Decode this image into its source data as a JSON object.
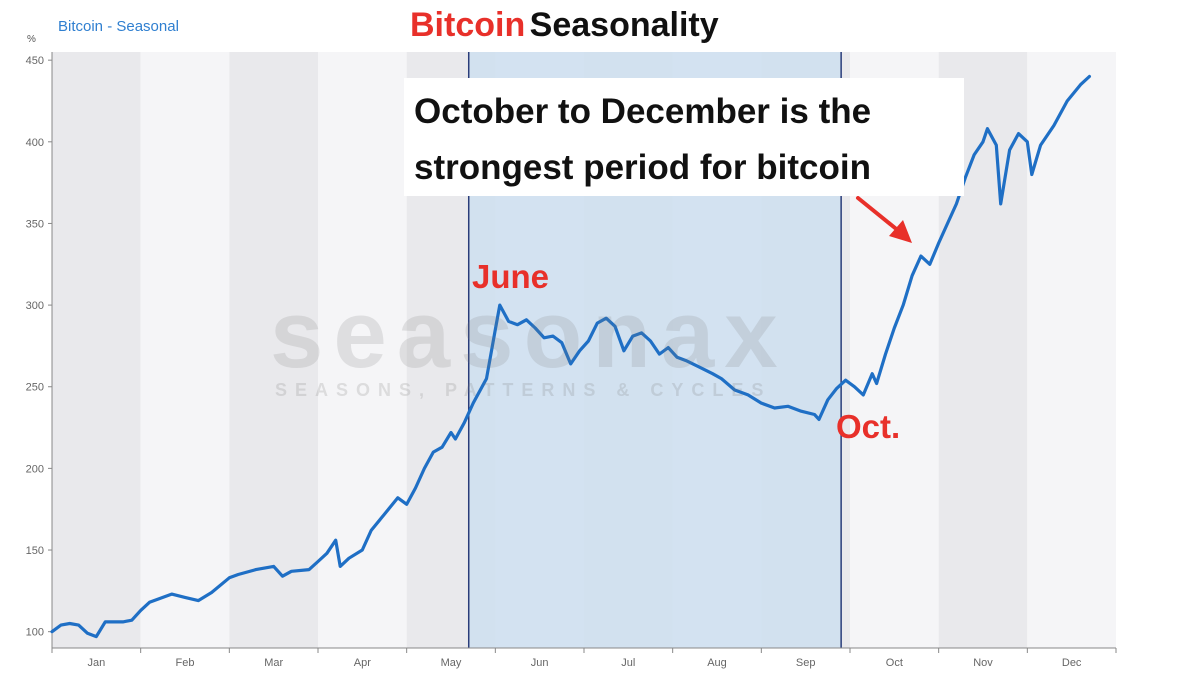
{
  "title": {
    "part1": "Bitcoin",
    "part2": "Seasonality",
    "color1": "#e8302a",
    "color2": "#111111"
  },
  "legend": {
    "series_name": "Bitcoin - Seasonal",
    "unit": "%"
  },
  "callout": {
    "line1": "October to December is the",
    "line2": "strongest period for bitcoin"
  },
  "annotations": {
    "june": "June",
    "oct": "Oct."
  },
  "watermark": {
    "brand": "seasonax",
    "tagline": "SEASONS, PATTERNS & CYCLES"
  },
  "colors": {
    "line": "#1f6fc5",
    "highlight": "#cfe0f0",
    "stripe_dark": "#e9e9ec",
    "stripe_light": "#f5f5f7",
    "annotation": "#e8302a"
  },
  "chart_data": {
    "type": "line",
    "ylabel": "%",
    "ylim": [
      90,
      455
    ],
    "yticks": [
      100,
      150,
      200,
      250,
      300,
      350,
      400,
      450
    ],
    "x_months": [
      "Jan",
      "Feb",
      "Mar",
      "Apr",
      "May",
      "Jun",
      "Jul",
      "Aug",
      "Sep",
      "Oct",
      "Nov",
      "Dec"
    ],
    "highlight_period": {
      "start_month_index": 4.7,
      "end_month_index": 8.9
    },
    "series": [
      {
        "name": "Bitcoin - Seasonal",
        "points": [
          [
            0.0,
            100
          ],
          [
            0.1,
            104
          ],
          [
            0.2,
            105
          ],
          [
            0.3,
            104
          ],
          [
            0.4,
            99
          ],
          [
            0.5,
            97
          ],
          [
            0.6,
            106
          ],
          [
            0.8,
            106
          ],
          [
            0.9,
            107
          ],
          [
            1.0,
            113
          ],
          [
            1.1,
            118
          ],
          [
            1.2,
            120
          ],
          [
            1.35,
            123
          ],
          [
            1.5,
            121
          ],
          [
            1.65,
            119
          ],
          [
            1.8,
            124
          ],
          [
            2.0,
            133
          ],
          [
            2.1,
            135
          ],
          [
            2.3,
            138
          ],
          [
            2.5,
            140
          ],
          [
            2.6,
            134
          ],
          [
            2.7,
            137
          ],
          [
            2.9,
            138
          ],
          [
            3.0,
            143
          ],
          [
            3.1,
            148
          ],
          [
            3.2,
            156
          ],
          [
            3.25,
            140
          ],
          [
            3.35,
            145
          ],
          [
            3.5,
            150
          ],
          [
            3.6,
            162
          ],
          [
            3.75,
            172
          ],
          [
            3.9,
            182
          ],
          [
            4.0,
            178
          ],
          [
            4.1,
            188
          ],
          [
            4.2,
            200
          ],
          [
            4.3,
            210
          ],
          [
            4.4,
            213
          ],
          [
            4.5,
            222
          ],
          [
            4.55,
            218
          ],
          [
            4.65,
            228
          ],
          [
            4.75,
            240
          ],
          [
            4.9,
            255
          ],
          [
            5.0,
            285
          ],
          [
            5.05,
            300
          ],
          [
            5.15,
            290
          ],
          [
            5.25,
            288
          ],
          [
            5.35,
            291
          ],
          [
            5.45,
            286
          ],
          [
            5.55,
            280
          ],
          [
            5.65,
            281
          ],
          [
            5.75,
            277
          ],
          [
            5.85,
            264
          ],
          [
            5.95,
            272
          ],
          [
            6.05,
            278
          ],
          [
            6.15,
            289
          ],
          [
            6.25,
            292
          ],
          [
            6.35,
            287
          ],
          [
            6.45,
            272
          ],
          [
            6.55,
            281
          ],
          [
            6.65,
            283
          ],
          [
            6.75,
            278
          ],
          [
            6.85,
            270
          ],
          [
            6.95,
            274
          ],
          [
            7.05,
            268
          ],
          [
            7.15,
            266
          ],
          [
            7.3,
            262
          ],
          [
            7.45,
            258
          ],
          [
            7.55,
            255
          ],
          [
            7.7,
            248
          ],
          [
            7.85,
            245
          ],
          [
            8.0,
            240
          ],
          [
            8.15,
            237
          ],
          [
            8.3,
            238
          ],
          [
            8.45,
            235
          ],
          [
            8.6,
            233
          ],
          [
            8.65,
            230
          ],
          [
            8.75,
            242
          ],
          [
            8.85,
            249
          ],
          [
            8.95,
            254
          ],
          [
            9.05,
            250
          ],
          [
            9.15,
            245
          ],
          [
            9.25,
            258
          ],
          [
            9.3,
            252
          ],
          [
            9.4,
            270
          ],
          [
            9.5,
            286
          ],
          [
            9.6,
            300
          ],
          [
            9.7,
            318
          ],
          [
            9.8,
            330
          ],
          [
            9.9,
            325
          ],
          [
            10.0,
            338
          ],
          [
            10.1,
            350
          ],
          [
            10.2,
            362
          ],
          [
            10.3,
            378
          ],
          [
            10.4,
            392
          ],
          [
            10.5,
            400
          ],
          [
            10.55,
            408
          ],
          [
            10.65,
            398
          ],
          [
            10.7,
            362
          ],
          [
            10.8,
            395
          ],
          [
            10.9,
            405
          ],
          [
            11.0,
            400
          ],
          [
            11.05,
            380
          ],
          [
            11.15,
            398
          ],
          [
            11.3,
            410
          ],
          [
            11.45,
            425
          ],
          [
            11.6,
            435
          ],
          [
            11.7,
            440
          ]
        ]
      }
    ]
  }
}
